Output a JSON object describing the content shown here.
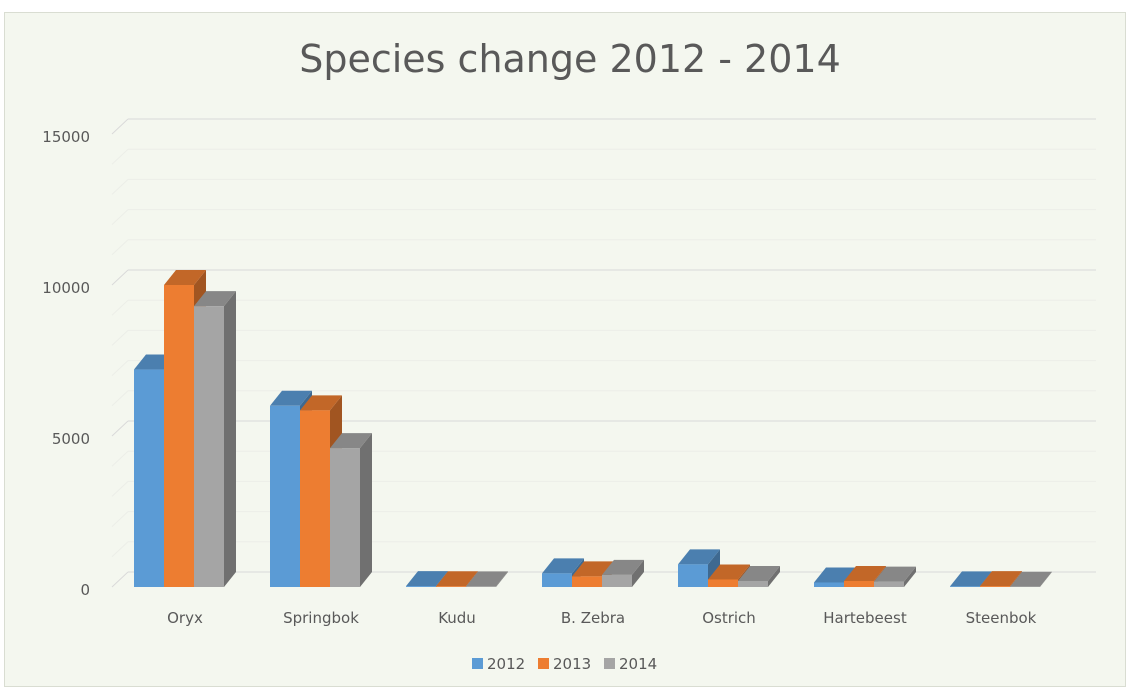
{
  "chart_data": {
    "type": "bar",
    "title": "Species change 2012 - 2014",
    "categories": [
      "Oryx",
      "Springbok",
      "Kudu",
      "B. Zebra",
      "Ostrich",
      "Hartebeest",
      "Steenbok"
    ],
    "series": [
      {
        "name": "2012",
        "color": "#5b9bd5",
        "values": [
          7200,
          6000,
          30,
          450,
          750,
          150,
          20
        ]
      },
      {
        "name": "2013",
        "color": "#ed7d31",
        "values": [
          10000,
          5850,
          25,
          350,
          250,
          200,
          30
        ]
      },
      {
        "name": "2014",
        "color": "#a5a5a5",
        "values": [
          9300,
          4600,
          20,
          400,
          200,
          180,
          10
        ]
      }
    ],
    "yticks": [
      "0",
      "5000",
      "10000",
      "15000"
    ],
    "ylim": [
      0,
      15000
    ],
    "legend": "bottom",
    "grid": true,
    "style": "3d-column"
  }
}
